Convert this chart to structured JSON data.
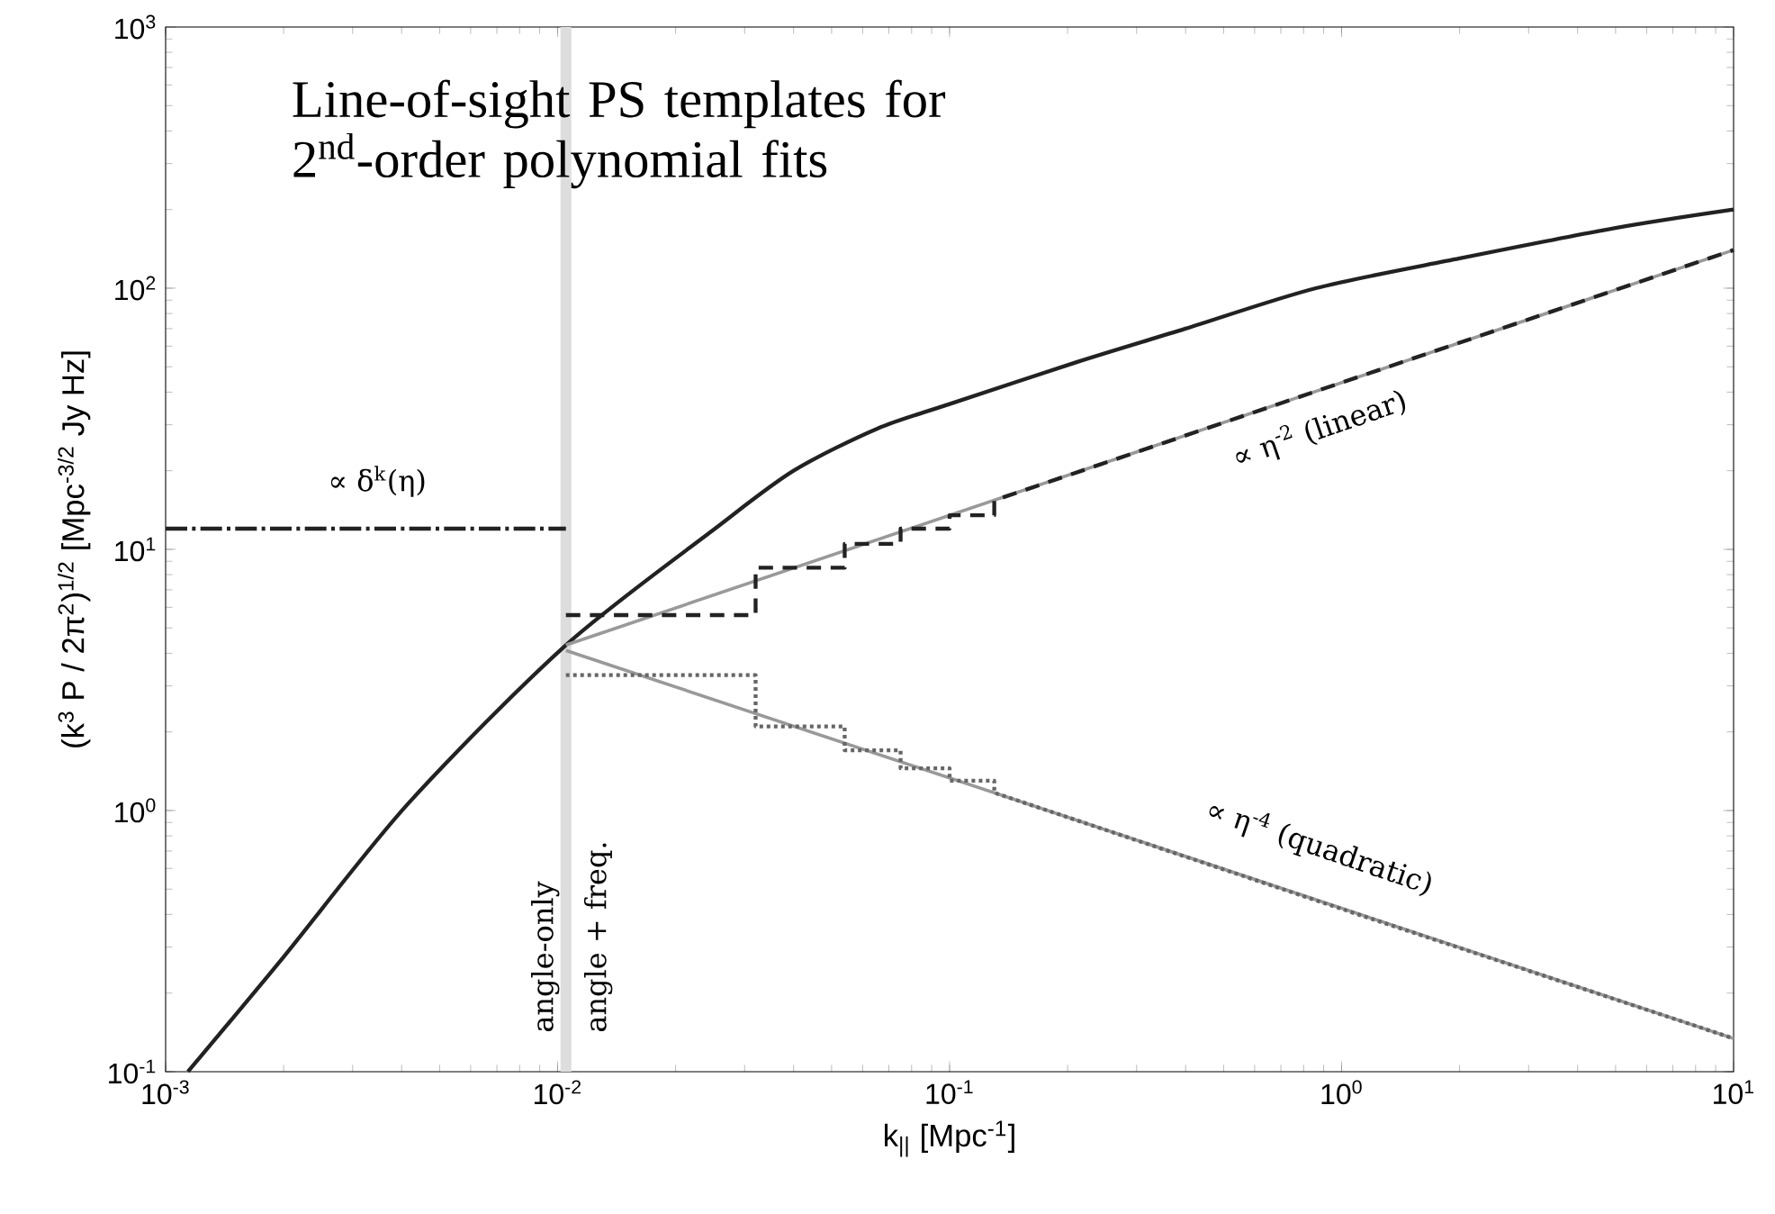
{
  "chart_data": {
    "type": "line",
    "title": "Line-of-sight PS templates for 2$^{nd}$-order polynomial fits",
    "xlabel": "k$_{||}$ [Mpc$^{-1}$]",
    "ylabel": "(k$^{3}$ P / 2π$^{2}$)$^{1/2}$ [Mpc$^{-3/2}$ Jy Hz]",
    "log": "xy",
    "xlim": [
      0.001,
      10
    ],
    "ylim": [
      0.1,
      1000
    ],
    "xticks": [
      {
        "value": 0.001,
        "label": "10$^{-3}$"
      },
      {
        "value": 0.01,
        "label": "10$^{-2}$"
      },
      {
        "value": 0.1,
        "label": "10$^{-1}$"
      },
      {
        "value": 1,
        "label": "10$^{0}$"
      },
      {
        "value": 10,
        "label": "10$^{1}$"
      }
    ],
    "yticks": [
      {
        "value": 0.1,
        "label": "10$^{-1}$"
      },
      {
        "value": 1,
        "label": "10$^{0}$"
      },
      {
        "value": 10,
        "label": "10$^{1}$"
      },
      {
        "value": 100,
        "label": "10$^{2}$"
      },
      {
        "value": 1000,
        "label": "10$^{3}$"
      }
    ],
    "series": [
      {
        "color": "#222222",
        "x": [
          0.00114,
          0.002,
          0.00415,
          0.0105,
          0.0252,
          0.04,
          0.0654,
          0.1,
          0.21,
          0.4,
          0.86,
          2,
          5,
          10
        ],
        "values": [
          0.1,
          0.275,
          1.06,
          4.3,
          12,
          20,
          29,
          36,
          52,
          70,
          100,
          130,
          170,
          200
        ]
      },
      {
        "color": "#999999",
        "x": [
          0.0105,
          10
        ],
        "values": [
          4.3,
          140
        ]
      },
      {
        "color": "#999999",
        "x": [
          0.0105,
          10
        ],
        "values": [
          4.1,
          0.134
        ]
      },
      {
        "color": "#222222",
        "line_style": "dashed",
        "x": [
          0.0105,
          0.032,
          0.032,
          0.054,
          0.054,
          0.075,
          0.075,
          0.1,
          0.1,
          0.13,
          0.13,
          1,
          10
        ],
        "values": [
          5.6,
          5.6,
          8.5,
          8.5,
          10.5,
          10.5,
          12,
          12,
          13.5,
          13.5,
          15.4,
          43.5,
          140
        ]
      },
      {
        "color": "#666666",
        "line_style": "dotted",
        "x": [
          0.0105,
          0.032,
          0.032,
          0.054,
          0.054,
          0.075,
          0.075,
          0.1,
          0.1,
          0.13,
          0.13,
          1,
          10
        ],
        "values": [
          3.3,
          3.3,
          2.1,
          2.1,
          1.7,
          1.7,
          1.45,
          1.45,
          1.3,
          1.3,
          1.17,
          0.42,
          0.134
        ]
      },
      {
        "color": "#222222",
        "line_style": "dashdot",
        "x": [
          0.001,
          0.0105
        ],
        "values": [
          12,
          12
        ]
      }
    ],
    "ref_lines": [
      {
        "axis": "x",
        "value": 0.0105,
        "color": "#dddddd"
      }
    ],
    "annotations": [
      "∝ δ$^{k}$(η)",
      "∝ η$^{-2}$ (linear)",
      "∝ η$^{-4}$ (quadratic)",
      "angle-only",
      "angle + freq."
    ]
  }
}
